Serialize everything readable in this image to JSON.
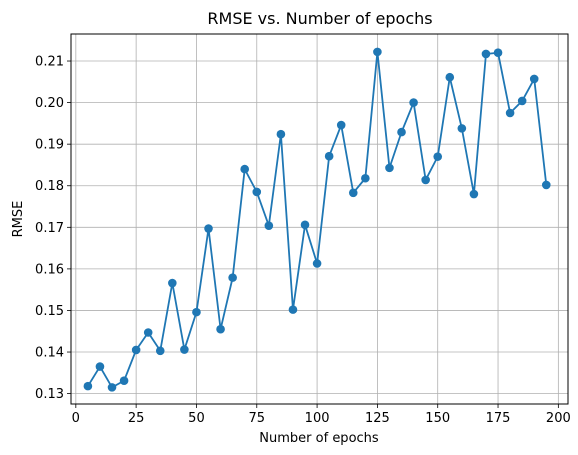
{
  "chart_data": {
    "type": "line",
    "title": "RMSE vs. Number of epochs",
    "xlabel": "Number of epochs",
    "ylabel": "RMSE",
    "xlim": [
      -2,
      204
    ],
    "ylim": [
      0.1275,
      0.2165
    ],
    "xticks": [
      0,
      25,
      50,
      75,
      100,
      125,
      150,
      175,
      200
    ],
    "xtick_labels": [
      "0",
      "25",
      "50",
      "75",
      "100",
      "125",
      "150",
      "175",
      "200"
    ],
    "yticks": [
      0.13,
      0.14,
      0.15,
      0.16,
      0.17,
      0.18,
      0.19,
      0.2,
      0.21
    ],
    "ytick_labels": [
      "0.13",
      "0.14",
      "0.15",
      "0.16",
      "0.17",
      "0.18",
      "0.19",
      "0.20",
      "0.21"
    ],
    "grid": true,
    "marker": "circle",
    "color": "#1f77b4",
    "series": [
      {
        "x": [
          5,
          10,
          15,
          20,
          25,
          30,
          35,
          40,
          45,
          50,
          55,
          60,
          65,
          70,
          75,
          80,
          85,
          90,
          95,
          100,
          105,
          110,
          115,
          120,
          125,
          130,
          135,
          140,
          145,
          150,
          155,
          160,
          165,
          170,
          175,
          180,
          185,
          190,
          195
        ],
        "values": [
          0.1318,
          0.1365,
          0.1315,
          0.1331,
          0.1405,
          0.1447,
          0.1403,
          0.1566,
          0.1406,
          0.1496,
          0.1697,
          0.1455,
          0.1579,
          0.184,
          0.1785,
          0.1704,
          0.1924,
          0.1502,
          0.1706,
          0.1613,
          0.1871,
          0.1946,
          0.1783,
          0.1818,
          0.2122,
          0.1843,
          0.1929,
          0.2,
          0.1814,
          0.187,
          0.2061,
          0.1938,
          0.178,
          0.2117,
          0.212,
          0.1975,
          0.2004,
          0.2057,
          0.1802
        ]
      }
    ]
  }
}
